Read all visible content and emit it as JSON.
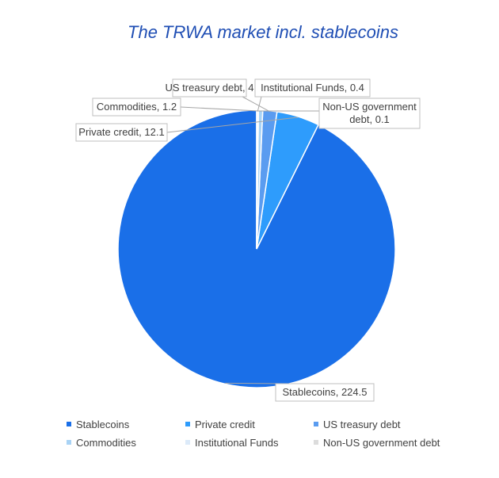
{
  "chart_data": {
    "type": "pie",
    "title": "The TRWA market incl. stablecoins",
    "title_color": "#1f4eb4",
    "categories": [
      "Stablecoins",
      "Private credit",
      "US treasury debt",
      "Commodities",
      "Institutional Funds",
      "Non-US government debt"
    ],
    "values": [
      224.5,
      12.1,
      4,
      1.2,
      0.4,
      0.1
    ],
    "data_labels": [
      "Stablecoins, 224.5",
      "Private credit, 12.1",
      "US treasury debt, 4",
      "Commodities, 1.2",
      "Institutional Funds, 0.4",
      "Non-US government debt, 0.1"
    ],
    "colors": [
      "#1a6fe8",
      "#2e9cfc",
      "#5a9cf0",
      "#a9d3f5",
      "#dceaf9",
      "#dcdcdc"
    ],
    "start_angle_deg": 0,
    "direction": "counterclockwise",
    "legend": {
      "position": "bottom",
      "columns": 3
    }
  }
}
